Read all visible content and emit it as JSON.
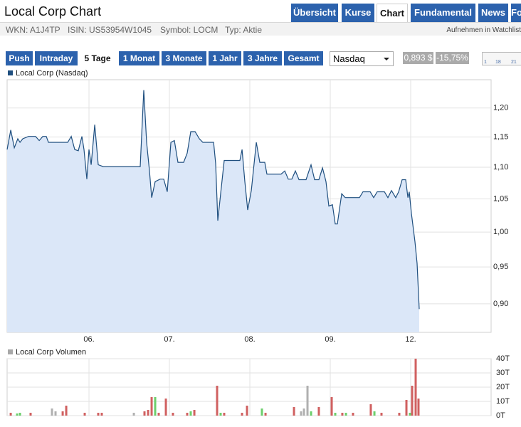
{
  "header": {
    "title": "Local Corp Chart",
    "tabs": [
      "Übersicht",
      "Kurse",
      "Chart",
      "Fundamental",
      "News",
      "Fo"
    ],
    "active_tab": 2,
    "info": [
      "WKN: A1J4TP",
      "ISIN: US53954W1045",
      "Symbol: LOCM",
      "Typ: Aktie"
    ],
    "watchlist": "Aufnehmen in Watchlist"
  },
  "toolbar": {
    "ranges": [
      "Push",
      "Intraday",
      "5 Tage",
      "1 Monat",
      "3 Monate",
      "1 Jahr",
      "3 Jahre",
      "Gesamt"
    ],
    "active_range": 2,
    "exchange": "Nasdaq",
    "price": "0,893 $",
    "change": "-15,75%",
    "slider_labels": [
      "1",
      "18",
      "21"
    ]
  },
  "chart_data": [
    {
      "type": "line",
      "log": true,
      "grid": true,
      "area_color": "#dbe7f8",
      "x": [
        -0.018,
        0.027,
        0.071,
        0.115,
        0.142,
        0.177,
        0.248,
        0.336,
        0.381,
        0.425,
        0.469,
        0.496,
        0.646,
        0.735,
        0.779,
        0.823,
        0.867,
        0.912,
        0.938,
        0.973,
        1,
        1.027,
        1.071,
        1.115,
        1.177,
        1.637,
        1.681,
        1.717,
        1.752,
        1.779,
        1.823,
        1.885,
        1.929,
        1.973,
        2.018,
        2.062,
        2.106,
        2.177,
        2.221,
        2.265,
        2.319,
        2.372,
        2.416,
        2.549,
        2.575,
        2.602,
        2.637,
        2.681,
        2.876,
        2.903,
        2.938,
        2.973,
        3.018,
        3.08,
        3.124,
        3.186,
        3.212,
        3.389,
        3.434,
        3.478,
        3.522,
        3.566,
        3.611,
        3.699,
        3.761,
        3.805,
        3.858,
        3.903,
        3.947,
        3.982,
        4.027,
        4.062,
        4.088,
        4.142,
        4.186,
        4.363,
        4.407,
        4.496,
        4.54,
        4.584,
        4.673,
        4.717,
        4.761,
        4.814,
        4.85,
        4.894,
        4.938,
        4.965,
        4.982,
        5.009,
        5.053,
        5.08,
        5.106
      ],
      "series": [
        {
          "name": "Local Corp (Nasdaq)",
          "color": "#1f4f7f",
          "values": [
            1.129,
            1.162,
            1.132,
            1.147,
            1.141,
            1.147,
            1.151,
            1.151,
            1.144,
            1.151,
            1.151,
            1.141,
            1.141,
            1.141,
            1.151,
            1.129,
            1.127,
            1.151,
            1.129,
            1.081,
            1.129,
            1.104,
            1.171,
            1.104,
            1.101,
            1.101,
            1.232,
            1.141,
            1.094,
            1.052,
            1.077,
            1.081,
            1.081,
            1.061,
            1.141,
            1.144,
            1.108,
            1.108,
            1.123,
            1.159,
            1.159,
            1.147,
            1.141,
            1.141,
            1.106,
            1.017,
            1.058,
            1.111,
            1.111,
            1.129,
            1.077,
            1.033,
            1.063,
            1.141,
            1.108,
            1.108,
            1.089,
            1.089,
            1.094,
            1.081,
            1.081,
            1.094,
            1.08,
            1.08,
            1.104,
            1.08,
            1.08,
            1.099,
            1.077,
            1.039,
            1.041,
            1.012,
            1.012,
            1.058,
            1.052,
            1.052,
            1.061,
            1.061,
            1.052,
            1.061,
            1.061,
            1.052,
            1.063,
            1.052,
            1.061,
            1.08,
            1.08,
            1.052,
            1.061,
            1.028,
            0.986,
            0.955,
            0.893
          ]
        }
      ],
      "xlim": [
        -0.018,
        6.0
      ],
      "xticks": [
        {
          "value": 1,
          "label": "06."
        },
        {
          "value": 2,
          "label": "07."
        },
        {
          "value": 3,
          "label": "08."
        },
        {
          "value": 4,
          "label": "09."
        },
        {
          "value": 5,
          "label": "12."
        }
      ],
      "ylim": [
        0.863,
        1.251
      ],
      "yticks": [
        {
          "value": 0.9,
          "label": "0,90"
        },
        {
          "value": 0.95,
          "label": "0,95"
        },
        {
          "value": 1.0,
          "label": "1,00"
        },
        {
          "value": 1.05,
          "label": "1,05"
        },
        {
          "value": 1.1,
          "label": "1,10"
        },
        {
          "value": 1.15,
          "label": "1,15"
        },
        {
          "value": 1.2,
          "label": "1,20"
        }
      ]
    },
    {
      "type": "bar",
      "grid": true,
      "x": [
        0.027,
        0.106,
        0.142,
        0.274,
        0.54,
        0.584,
        0.673,
        0.717,
        0.947,
        1.115,
        1.159,
        1.558,
        1.69,
        1.735,
        1.779,
        1.823,
        1.867,
        1.956,
        2.044,
        2.221,
        2.265,
        2.31,
        2.593,
        2.637,
        2.681,
        2.903,
        2.965,
        3.15,
        3.195,
        3.549,
        3.637,
        3.673,
        3.717,
        3.761,
        3.858,
        4.018,
        4.062,
        4.15,
        4.195,
        4.283,
        4.504,
        4.549,
        4.637,
        4.858,
        4.947,
        4.991,
        5.018,
        5.062,
        5.097
      ],
      "series": [
        {
          "name": "Local Corp Volumen",
          "color": "#a8a8a8",
          "values": [
            2000,
            1500,
            2000,
            2000,
            5000,
            3000,
            3000,
            7000,
            2000,
            2000,
            2000,
            2000,
            3000,
            4000,
            13000,
            13000,
            2000,
            12000,
            2000,
            2000,
            3000,
            4000,
            21000,
            2000,
            2000,
            2000,
            7000,
            5000,
            2000,
            6000,
            3000,
            5000,
            21000,
            3000,
            6000,
            13000,
            2000,
            2000,
            2000,
            2000,
            8000,
            3000,
            2000,
            2000,
            11000,
            2000,
            21000,
            40000,
            12000
          ],
          "colors": [
            "#d06060",
            "#6ccf6c",
            "#6ccf6c",
            "#d06060",
            "#b0b0b0",
            "#b0b0b0",
            "#d06060",
            "#d06060",
            "#d06060",
            "#d06060",
            "#d06060",
            "#b0b0b0",
            "#d06060",
            "#d06060",
            "#d06060",
            "#6ccf6c",
            "#d06060",
            "#d06060",
            "#d06060",
            "#d06060",
            "#6ccf6c",
            "#d06060",
            "#d06060",
            "#6ccf6c",
            "#d06060",
            "#d06060",
            "#d06060",
            "#6ccf6c",
            "#d06060",
            "#d06060",
            "#b0b0b0",
            "#b0b0b0",
            "#b0b0b0",
            "#6ccf6c",
            "#d06060",
            "#d06060",
            "#6ccf6c",
            "#d06060",
            "#6ccf6c",
            "#d06060",
            "#d06060",
            "#6ccf6c",
            "#d06060",
            "#d06060",
            "#d06060",
            "#6ccf6c",
            "#d06060",
            "#d06060",
            "#d06060"
          ]
        }
      ],
      "xlim": [
        -0.018,
        6.0
      ],
      "ylim": [
        0,
        40000
      ],
      "yticks": [
        {
          "value": 0,
          "label": "0T"
        },
        {
          "value": 10000,
          "label": "10T"
        },
        {
          "value": 20000,
          "label": "20T"
        },
        {
          "value": 30000,
          "label": "30T"
        },
        {
          "value": 40000,
          "label": "40T"
        }
      ]
    }
  ]
}
